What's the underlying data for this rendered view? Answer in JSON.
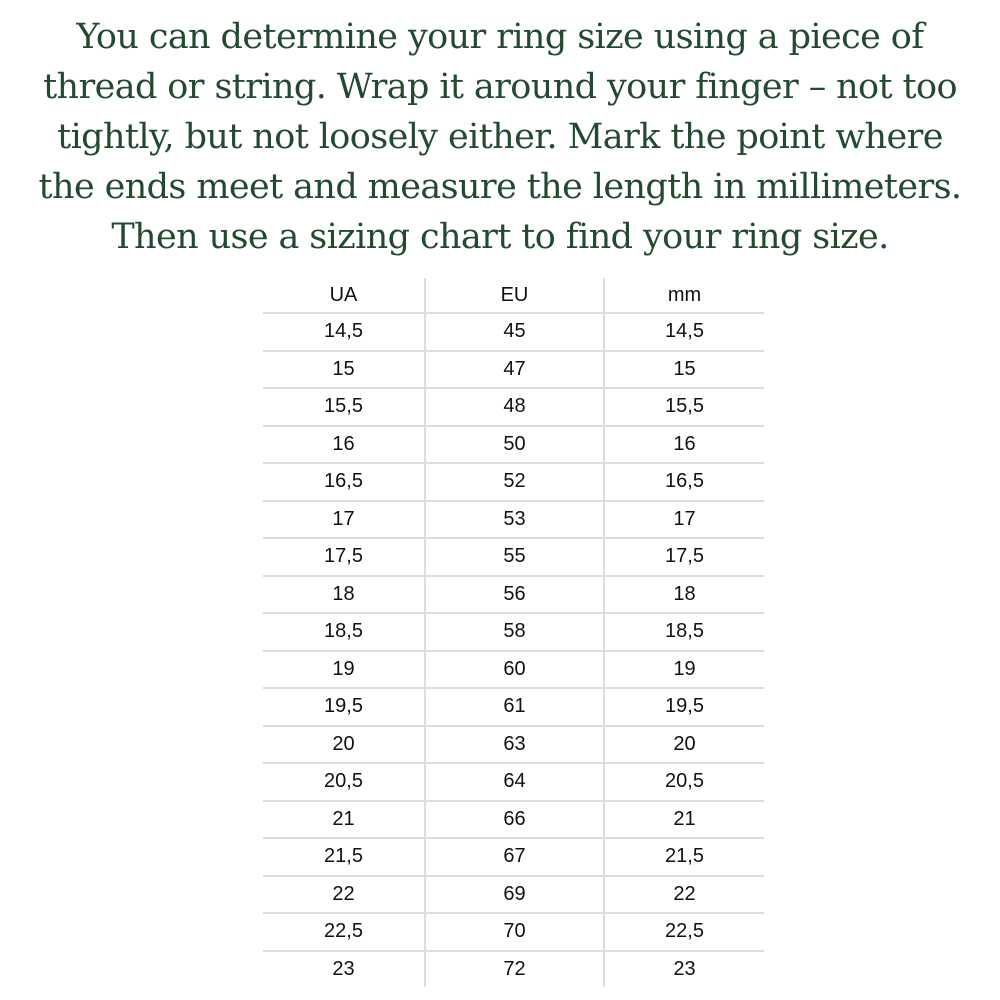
{
  "intro_lines": [
    "You can determine your ring size using a piece of",
    "thread or string. Wrap it around your finger – not too",
    "tightly, but not loosely either. Mark the point where",
    "the ends meet and measure the length in millimeters.",
    "Then use a sizing chart to find your ring size."
  ],
  "table": {
    "headers": [
      "UA",
      "EU",
      "mm"
    ],
    "rows": [
      [
        "14,5",
        "45",
        "14,5"
      ],
      [
        "15",
        "47",
        "15"
      ],
      [
        "15,5",
        "48",
        "15,5"
      ],
      [
        "16",
        "50",
        "16"
      ],
      [
        "16,5",
        "52",
        "16,5"
      ],
      [
        "17",
        "53",
        "17"
      ],
      [
        "17,5",
        "55",
        "17,5"
      ],
      [
        "18",
        "56",
        "18"
      ],
      [
        "18,5",
        "58",
        "18,5"
      ],
      [
        "19",
        "60",
        "19"
      ],
      [
        "19,5",
        "61",
        "19,5"
      ],
      [
        "20",
        "63",
        "20"
      ],
      [
        "20,5",
        "64",
        "20,5"
      ],
      [
        "21",
        "66",
        "21"
      ],
      [
        "21,5",
        "67",
        "21,5"
      ],
      [
        "22",
        "69",
        "22"
      ],
      [
        "22,5",
        "70",
        "22,5"
      ],
      [
        "23",
        "72",
        "23"
      ]
    ]
  },
  "colors": {
    "text": "#234a30"
  }
}
